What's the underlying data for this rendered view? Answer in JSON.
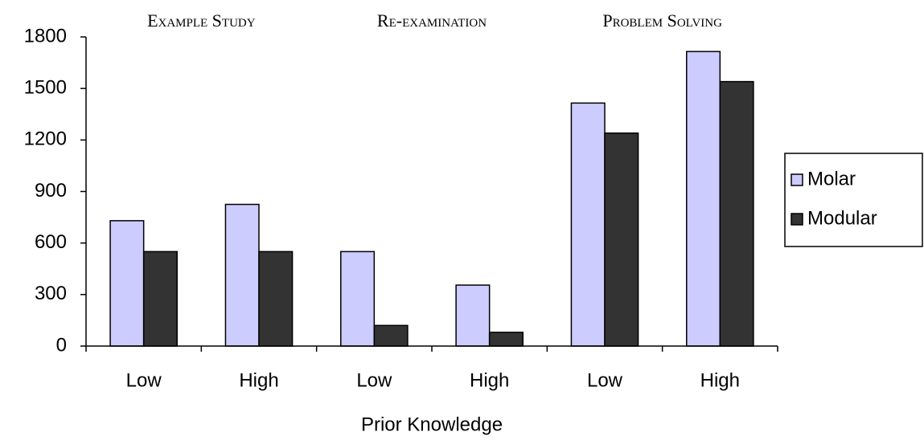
{
  "chart_data": {
    "type": "bar",
    "group_labels": [
      "Example Study",
      "Re-examination",
      "Problem Solving"
    ],
    "x_label": "Prior Knowledge",
    "categories": [
      "Low",
      "High",
      "Low",
      "High",
      "Low",
      "High"
    ],
    "series": [
      {
        "name": "Molar",
        "color": "#ccccff",
        "values": [
          730,
          825,
          550,
          355,
          1415,
          1715
        ]
      },
      {
        "name": "Modular",
        "color": "#333333",
        "values": [
          550,
          550,
          120,
          80,
          1240,
          1540
        ]
      }
    ],
    "ylim": [
      0,
      1800
    ],
    "yticks": [
      0,
      300,
      600,
      900,
      1200,
      1500,
      1800
    ],
    "legend": "right"
  }
}
